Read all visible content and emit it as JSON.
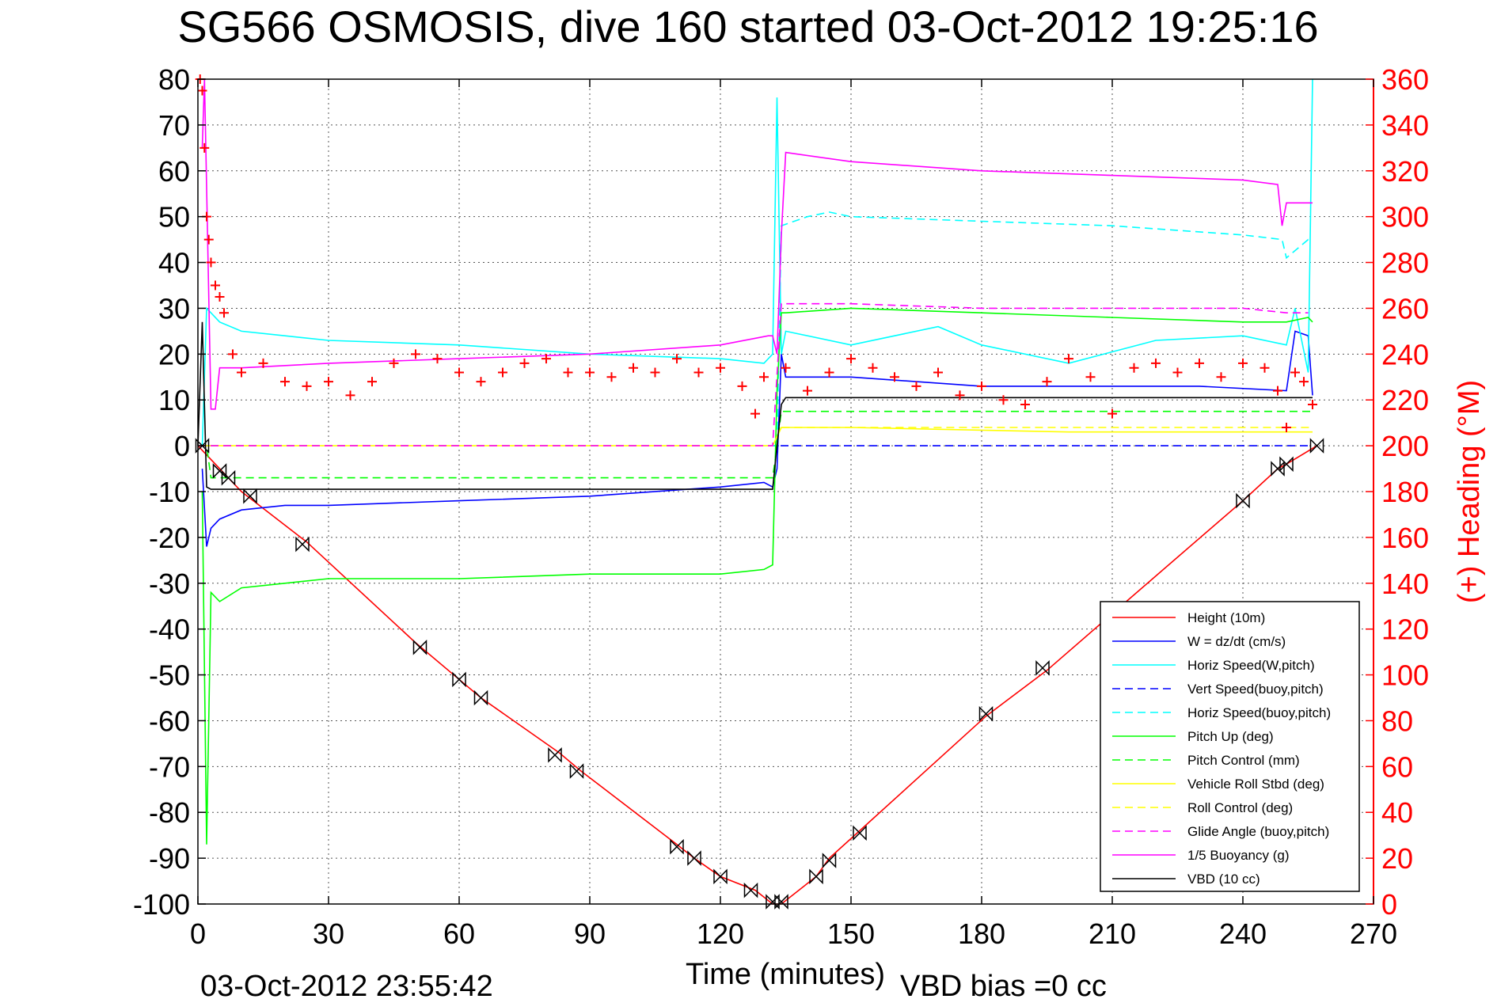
{
  "chart_data": {
    "type": "line",
    "title": "SG566 OSMOSIS, dive 160 started 03-Oct-2012 19:25:16",
    "xlabel": "Time (minutes)",
    "ylabel_right": "(+) Heading (°M)",
    "xlim": [
      0,
      270
    ],
    "ylim": [
      -100,
      80
    ],
    "ylim_right": [
      0,
      360
    ],
    "x_ticks": [
      "0",
      "30",
      "60",
      "90",
      "120",
      "150",
      "180",
      "210",
      "240",
      "270"
    ],
    "y_ticks": [
      "80",
      "70",
      "60",
      "50",
      "40",
      "30",
      "20",
      "10",
      "0",
      "-10",
      "-20",
      "-30",
      "-40",
      "-50",
      "-60",
      "-70",
      "-80",
      "-90",
      "-100"
    ],
    "y_right_ticks": [
      "360",
      "340",
      "320",
      "300",
      "280",
      "260",
      "240",
      "220",
      "200",
      "180",
      "160",
      "140",
      "120",
      "100",
      "80",
      "60",
      "40",
      "20",
      "0"
    ],
    "grid": true,
    "legend_position": "bottom-right",
    "footer_left": "03-Oct-2012 23:55:42",
    "footer_right": "VBD bias =0 cc",
    "series": [
      {
        "name": "Height (10m)",
        "color": "#ff0000",
        "style": "solid",
        "x": [
          0,
          5,
          10,
          25,
          50,
          60,
          65,
          83,
          88,
          110,
          114,
          120,
          128,
          132,
          134,
          142,
          145,
          152,
          181,
          195,
          212,
          240,
          248,
          250,
          257
        ],
        "y": [
          0,
          -5,
          -10,
          -21,
          -43,
          -51,
          -55,
          -67,
          -71,
          -87,
          -90,
          -94,
          -97,
          -100,
          -100,
          -94,
          -90,
          -84,
          -59,
          -49,
          -35,
          -12,
          -5,
          -4,
          0
        ]
      },
      {
        "name": "W = dz/dt (cm/s)",
        "color": "#0000ff",
        "style": "solid",
        "x": [
          1,
          2,
          3,
          5,
          10,
          20,
          30,
          60,
          90,
          120,
          130,
          132,
          133,
          134,
          135,
          150,
          180,
          210,
          230,
          250,
          252,
          255,
          256
        ],
        "y": [
          -5,
          -22,
          -18,
          -16,
          -14,
          -13,
          -13,
          -12,
          -11,
          -9,
          -8,
          -9,
          -5,
          20,
          15,
          15,
          13,
          13,
          13,
          12,
          25,
          24,
          11
        ]
      },
      {
        "name": "Horiz Speed(W,pitch)",
        "color": "#00ffff",
        "style": "solid",
        "x": [
          1,
          2,
          3,
          5,
          10,
          20,
          30,
          60,
          90,
          120,
          130,
          132,
          133,
          134,
          135,
          150,
          170,
          180,
          200,
          220,
          240,
          250,
          252,
          255,
          256
        ],
        "y": [
          0,
          30,
          29,
          27,
          25,
          24,
          23,
          22,
          20,
          19,
          18,
          20,
          76,
          20,
          25,
          22,
          26,
          22,
          18,
          23,
          24,
          22,
          30,
          16,
          80
        ]
      },
      {
        "name": "Vert Speed(buoy,pitch)",
        "color": "#0000ff",
        "style": "dashed",
        "x": [
          0,
          2,
          132,
          134,
          255
        ],
        "y": [
          0,
          0,
          0,
          0,
          0
        ]
      },
      {
        "name": "Horiz Speed(buoy,pitch)",
        "color": "#00ffff",
        "style": "dashed",
        "x": [
          0,
          2,
          131,
          133,
          134,
          140,
          145,
          150,
          180,
          210,
          240,
          249,
          250,
          255,
          256
        ],
        "y": [
          0,
          0,
          0,
          0,
          48,
          50,
          51,
          50,
          49,
          48,
          46,
          45,
          41,
          45,
          45
        ]
      },
      {
        "name": "Pitch Up (deg)",
        "color": "#00ff00",
        "style": "solid",
        "x": [
          1,
          2,
          3,
          5,
          10,
          20,
          30,
          60,
          90,
          120,
          130,
          132,
          133,
          134,
          135,
          150,
          180,
          210,
          240,
          250,
          255,
          256
        ],
        "y": [
          -10,
          -87,
          -32,
          -34,
          -31,
          -30,
          -29,
          -29,
          -28,
          -28,
          -27,
          -26,
          12,
          29,
          29,
          30,
          29,
          28,
          27,
          27,
          28,
          27
        ]
      },
      {
        "name": "Pitch Control (mm)",
        "color": "#00ff00",
        "style": "dashed",
        "x": [
          0,
          2,
          3,
          132,
          133,
          134,
          256
        ],
        "y": [
          0,
          0,
          -7,
          -7,
          0,
          7.5,
          7.5
        ]
      },
      {
        "name": "Vehicle Roll Stbd (deg)",
        "color": "#ffff00",
        "style": "solid",
        "x": [
          0,
          2,
          5,
          50,
          90,
          132,
          134,
          150,
          200,
          240,
          250,
          256
        ],
        "y": [
          0,
          0,
          0,
          0,
          0,
          0,
          4,
          4,
          3,
          3,
          3,
          3
        ]
      },
      {
        "name": "Roll Control (deg)",
        "color": "#ffff00",
        "style": "dashed",
        "x": [
          0,
          132,
          134,
          256
        ],
        "y": [
          0,
          0,
          4,
          4
        ]
      },
      {
        "name": "Glide Angle (buoy,pitch)",
        "color": "#ff00ff",
        "style": "dashed",
        "x": [
          0,
          1,
          132,
          134,
          150,
          180,
          210,
          240,
          250,
          255
        ],
        "y": [
          0,
          0,
          0,
          31,
          31,
          30,
          30,
          30,
          29,
          29
        ]
      },
      {
        "name": "1/5 Buoyancy (g)",
        "color": "#ff00ff",
        "style": "solid",
        "x": [
          1,
          1.5,
          3,
          4,
          5,
          10,
          30,
          60,
          90,
          120,
          131,
          132,
          133,
          134,
          135,
          150,
          180,
          210,
          240,
          248,
          249,
          250,
          251,
          256
        ],
        "y": [
          65,
          80,
          8,
          8,
          17,
          17,
          18,
          19,
          20,
          22,
          24,
          24,
          20,
          46,
          64,
          62,
          60,
          59,
          58,
          57,
          48,
          53,
          53,
          53
        ]
      },
      {
        "name": "VBD (10 cc)",
        "color": "#000000",
        "style": "solid",
        "x": [
          0,
          1,
          2,
          3,
          131,
          132,
          133,
          134,
          135,
          256
        ],
        "y": [
          0,
          27,
          -9,
          -9.5,
          -9.5,
          -9.5,
          0,
          9,
          10.5,
          10.5
        ]
      },
      {
        "name": "Heading",
        "color": "#ff0000",
        "style": "markers",
        "axis": "right",
        "x": [
          0.5,
          1,
          1.5,
          2,
          2.5,
          3,
          4,
          5,
          6,
          8,
          10,
          15,
          20,
          25,
          30,
          35,
          40,
          45,
          50,
          55,
          60,
          65,
          70,
          75,
          80,
          85,
          90,
          95,
          100,
          105,
          110,
          115,
          120,
          125,
          128,
          130,
          135,
          140,
          145,
          150,
          155,
          160,
          165,
          170,
          175,
          180,
          185,
          190,
          195,
          200,
          205,
          210,
          215,
          220,
          225,
          230,
          235,
          240,
          245,
          248,
          250,
          252,
          254,
          256
        ],
        "y": [
          360,
          355,
          330,
          300,
          290,
          280,
          270,
          265,
          258,
          240,
          232,
          236,
          228,
          226,
          228,
          222,
          228,
          236,
          240,
          238,
          232,
          228,
          232,
          236,
          238,
          232,
          232,
          230,
          234,
          232,
          238,
          232,
          234,
          226,
          214,
          230,
          234,
          224,
          232,
          238,
          234,
          230,
          226,
          232,
          222,
          226,
          220,
          218,
          228,
          238,
          230,
          214,
          234,
          236,
          232,
          236,
          230,
          236,
          234,
          224,
          208,
          232,
          228,
          218
        ]
      }
    ],
    "markers": {
      "description_color": "#000000",
      "x": [
        1,
        5,
        7,
        12,
        24,
        51,
        60,
        65,
        82,
        87,
        110,
        114,
        120,
        127,
        132,
        134,
        142,
        145,
        152,
        181,
        194,
        240,
        248,
        250,
        257
      ],
      "y": [
        0,
        -5.5,
        -7,
        -11,
        -21.5,
        -44,
        -51,
        -55,
        -67.5,
        -71,
        -87.5,
        -90,
        -94,
        -97,
        -99.5,
        -99.5,
        -94,
        -90.5,
        -84.5,
        -58.5,
        -48.5,
        -12,
        -5,
        -4,
        0
      ]
    }
  }
}
